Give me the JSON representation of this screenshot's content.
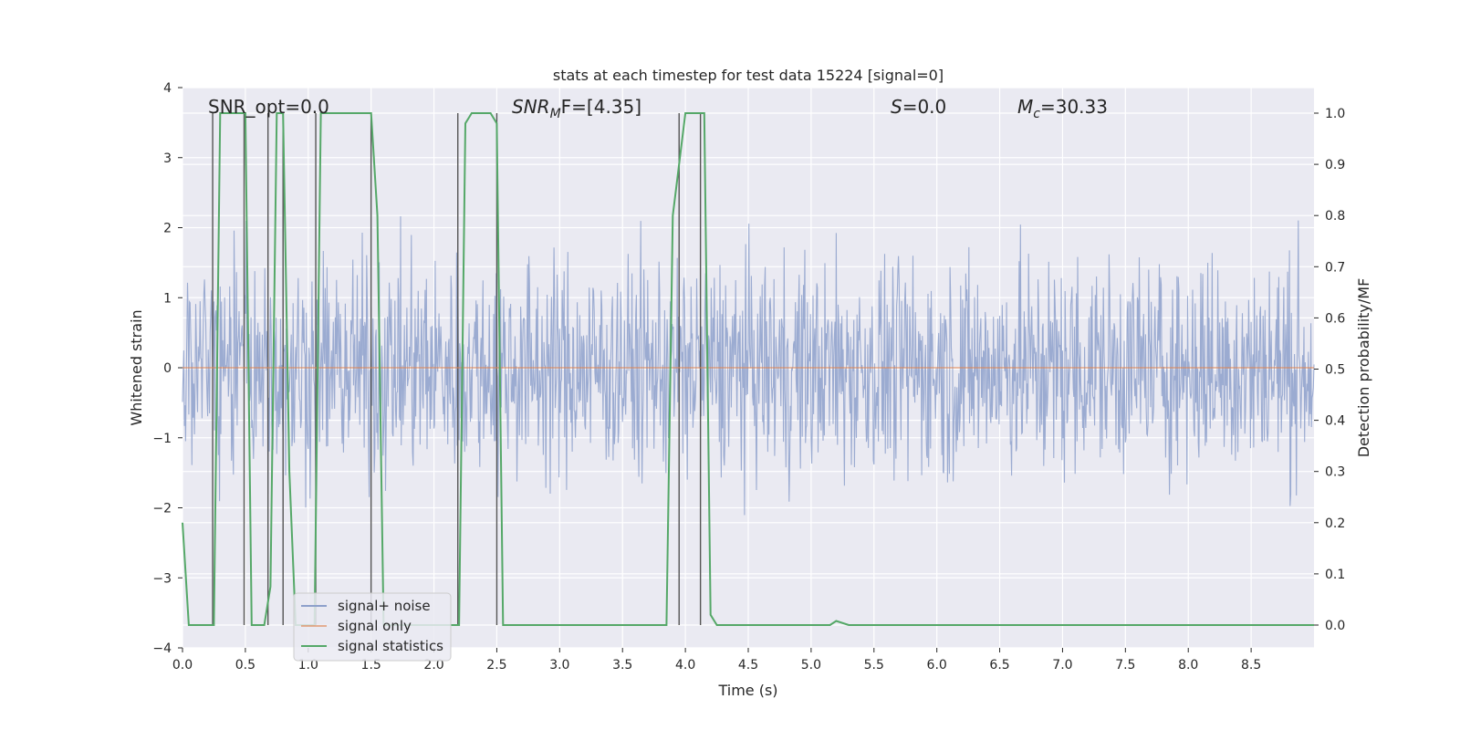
{
  "chart_data": {
    "type": "line",
    "title": "stats at each timestep for test data 15224 [signal=0]",
    "xlabel": "Time (s)",
    "ylabel": "Whitened strain",
    "y2label": "Detection probability/MF",
    "xlim": [
      0.0,
      9.0
    ],
    "ylim": [
      -4.0,
      4.0
    ],
    "y2lim": [
      0.0,
      1.0
    ],
    "xticks": [
      "0.0",
      "0.5",
      "1.0",
      "1.5",
      "2.0",
      "2.5",
      "3.0",
      "3.5",
      "4.0",
      "4.5",
      "5.0",
      "5.5",
      "6.0",
      "6.5",
      "7.0",
      "7.5",
      "8.0",
      "8.5"
    ],
    "yticks": [
      "4",
      "3",
      "2",
      "1",
      "0",
      "−1",
      "−2",
      "−3",
      "−4"
    ],
    "y2ticks": [
      "1.0",
      "0.9",
      "0.8",
      "0.7",
      "0.6",
      "0.5",
      "0.4",
      "0.3",
      "0.2",
      "0.1",
      "0.0"
    ],
    "grid": true,
    "legend_position": "lower-left",
    "annotations": [
      {
        "text": "SNR_opt=0.0"
      },
      {
        "text": "SNR_MF=[4.35]",
        "main": "SNR",
        "sub": "M",
        "tail": "F=[4.35]"
      },
      {
        "text": "S=0.0",
        "main": "S",
        "tail": "=0.0"
      },
      {
        "text": "M_c=30.33",
        "main": "M",
        "sub": "c",
        "tail": "=30.33"
      }
    ],
    "series": [
      {
        "name": "signal+ noise",
        "color": "#8da0cb",
        "kind": "noise",
        "envelope": 3.3,
        "duration": 9.0
      },
      {
        "name": "signal only",
        "color": "#dd8452",
        "x": [
          0.0,
          9.0
        ],
        "y": [
          0.0,
          0.0
        ]
      },
      {
        "name": "signal statistics",
        "color": "#55a868",
        "x": [
          0.0,
          0.05,
          0.1,
          0.15,
          0.2,
          0.25,
          0.3,
          0.35,
          0.4,
          0.45,
          0.5,
          0.55,
          0.6,
          0.65,
          0.7,
          0.75,
          0.8,
          0.85,
          0.9,
          0.95,
          1.0,
          1.05,
          1.1,
          1.15,
          1.2,
          1.25,
          1.3,
          1.35,
          1.4,
          1.45,
          1.5,
          1.55,
          1.6,
          1.65,
          1.7,
          1.75,
          1.8,
          1.85,
          1.9,
          1.95,
          2.0,
          2.05,
          2.1,
          2.15,
          2.2,
          2.25,
          2.3,
          2.35,
          2.4,
          2.45,
          2.5,
          2.55,
          2.6,
          2.65,
          3.0,
          3.5,
          3.85,
          3.9,
          3.95,
          4.0,
          4.05,
          4.1,
          4.15,
          4.2,
          4.25,
          4.3,
          4.5,
          5.0,
          5.1,
          5.15,
          5.2,
          5.3,
          5.5,
          6.0,
          7.0,
          8.0,
          9.0
        ],
        "y": [
          0.2,
          0.0,
          0.0,
          0.0,
          0.0,
          0.0,
          1.0,
          1.0,
          1.0,
          1.0,
          1.0,
          0.0,
          0.0,
          0.0,
          0.075,
          1.0,
          1.0,
          0.3,
          0.0,
          0.0,
          0.0,
          0.0,
          1.0,
          1.0,
          1.0,
          1.0,
          1.0,
          1.0,
          1.0,
          1.0,
          1.0,
          0.8,
          0.0,
          0.0,
          0.0,
          0.0,
          0.0,
          0.0,
          0.0,
          0.0,
          0.0,
          0.0,
          0.0,
          0.0,
          0.0,
          0.98,
          1.0,
          1.0,
          1.0,
          1.0,
          0.98,
          0.0,
          0.0,
          0.0,
          0.0,
          0.0,
          0.0,
          0.8,
          0.9,
          1.0,
          1.0,
          1.0,
          1.0,
          0.02,
          0.0,
          0.0,
          0.0,
          0.0,
          0.0,
          0.0,
          0.008,
          0.0,
          0.0,
          0.0,
          0.0,
          0.0,
          0.0
        ]
      }
    ],
    "vlines_x": [
      0.24,
      0.49,
      0.68,
      0.8,
      1.06,
      1.5,
      2.19,
      2.5,
      3.95,
      4.12
    ]
  }
}
